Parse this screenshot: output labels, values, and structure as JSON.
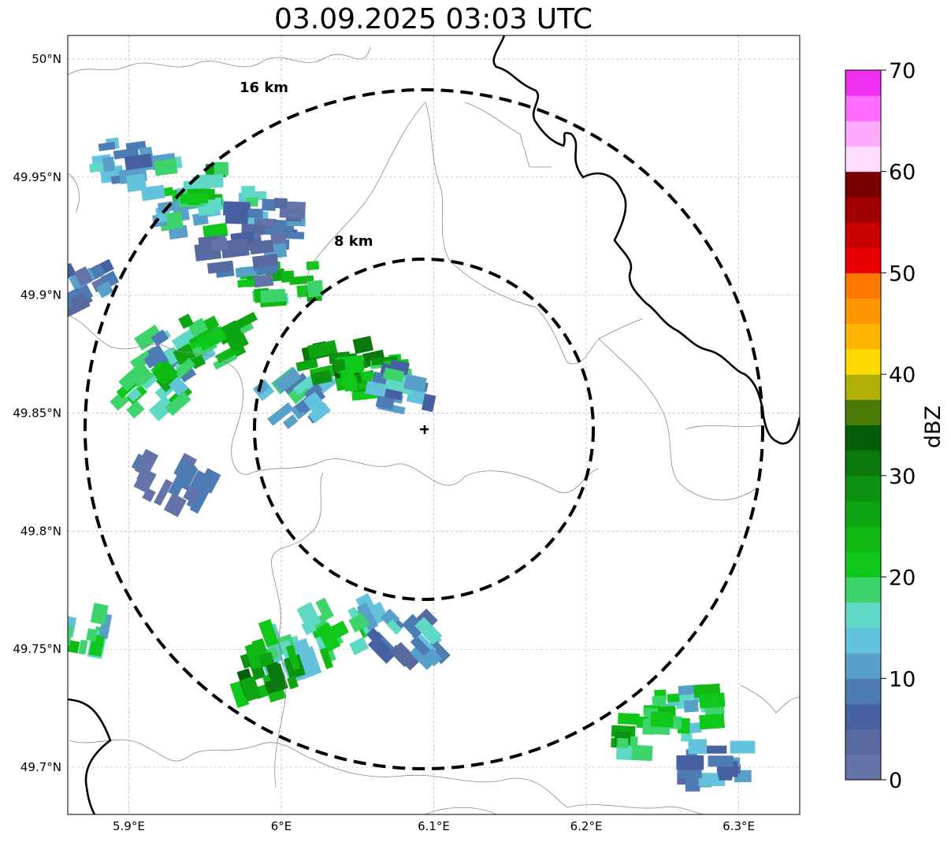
{
  "title": "03.09.2025 03:03 UTC",
  "map": {
    "lon_range": [
      5.86,
      6.34
    ],
    "lat_range": [
      49.68,
      50.01
    ],
    "lon_ticks": [
      {
        "value": 5.9,
        "label": "5.9°E"
      },
      {
        "value": 6.0,
        "label": "6°E"
      },
      {
        "value": 6.1,
        "label": "6.1°E"
      },
      {
        "value": 6.2,
        "label": "6.2°E"
      },
      {
        "value": 6.3,
        "label": "6.3°E"
      }
    ],
    "lat_ticks": [
      {
        "value": 50.0,
        "label": "50°N"
      },
      {
        "value": 49.95,
        "label": "49.95°N"
      },
      {
        "value": 49.9,
        "label": "49.9°N"
      },
      {
        "value": 49.85,
        "label": "49.85°N"
      },
      {
        "value": 49.8,
        "label": "49.8°N"
      },
      {
        "value": 49.75,
        "label": "49.75°N"
      },
      {
        "value": 49.7,
        "label": "49.7°N"
      }
    ],
    "gridlines": true,
    "radar_site": {
      "lon": 6.094,
      "lat": 49.843
    },
    "range_rings": [
      {
        "radius_km": 8,
        "label": "8 km"
      },
      {
        "radius_km": 16,
        "label": "16 km"
      }
    ]
  },
  "colorbar": {
    "label": "dBZ",
    "min": 0,
    "max": 70,
    "step": 2.5,
    "tick_labels": [
      "0",
      "10",
      "20",
      "30",
      "40",
      "50",
      "60",
      "70"
    ],
    "colors": [
      "#6474a8",
      "#58699f",
      "#4660a2",
      "#4d7bb3",
      "#58a0c9",
      "#63c2dc",
      "#5fd8c6",
      "#3dd46c",
      "#10c81c",
      "#10b814",
      "#0ea512",
      "#0c9210",
      "#0a780c",
      "#055e08",
      "#4a7a08",
      "#afaf06",
      "#ffd800",
      "#ffb400",
      "#ff9600",
      "#ff7800",
      "#e80000",
      "#c80000",
      "#a00000",
      "#780000",
      "#ffdcff",
      "#ffaaff",
      "#ff6cff",
      "#f030f0"
    ]
  },
  "echo_cells": [
    {
      "lon": 5.935,
      "lat": 49.935,
      "dbz": 16
    },
    {
      "lon": 5.905,
      "lat": 49.955,
      "dbz": 12
    },
    {
      "lon": 5.96,
      "lat": 49.945,
      "dbz": 20
    },
    {
      "lon": 5.99,
      "lat": 49.93,
      "dbz": 8
    },
    {
      "lon": 6.0,
      "lat": 49.905,
      "dbz": 22
    },
    {
      "lon": 5.975,
      "lat": 49.915,
      "dbz": 6
    },
    {
      "lon": 5.93,
      "lat": 49.875,
      "dbz": 14
    },
    {
      "lon": 5.955,
      "lat": 49.88,
      "dbz": 22
    },
    {
      "lon": 5.915,
      "lat": 49.86,
      "dbz": 20
    },
    {
      "lon": 5.93,
      "lat": 49.82,
      "dbz": 4
    },
    {
      "lon": 6.005,
      "lat": 49.855,
      "dbz": 14
    },
    {
      "lon": 6.04,
      "lat": 49.87,
      "dbz": 28
    },
    {
      "lon": 6.06,
      "lat": 49.865,
      "dbz": 24
    },
    {
      "lon": 6.08,
      "lat": 49.86,
      "dbz": 12
    },
    {
      "lon": 6.01,
      "lat": 49.75,
      "dbz": 18
    },
    {
      "lon": 5.995,
      "lat": 49.74,
      "dbz": 28
    },
    {
      "lon": 6.04,
      "lat": 49.76,
      "dbz": 16
    },
    {
      "lon": 6.08,
      "lat": 49.755,
      "dbz": 10
    },
    {
      "lon": 6.27,
      "lat": 49.725,
      "dbz": 18
    },
    {
      "lon": 6.245,
      "lat": 49.715,
      "dbz": 22
    },
    {
      "lon": 6.28,
      "lat": 49.7,
      "dbz": 8
    },
    {
      "lon": 5.865,
      "lat": 49.76,
      "dbz": 18
    },
    {
      "lon": 5.865,
      "lat": 49.905,
      "dbz": 6
    }
  ]
}
